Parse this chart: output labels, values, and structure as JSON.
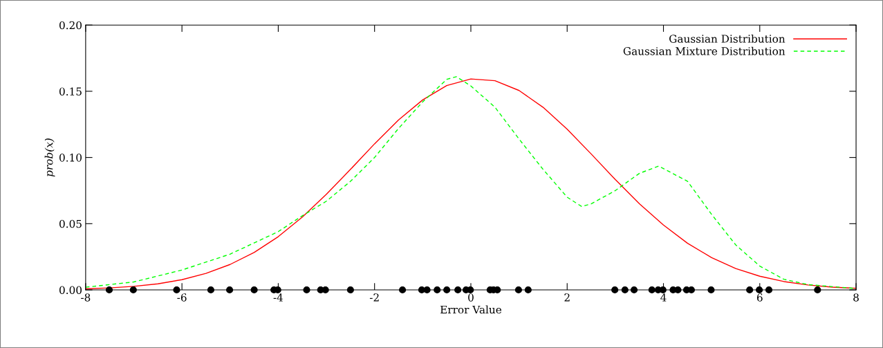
{
  "chart_data": {
    "type": "line",
    "xlabel": "Error Value",
    "ylabel": "prob(x)",
    "xlim": [
      -8,
      8
    ],
    "xticks": [
      -8,
      -6,
      -4,
      -2,
      0,
      2,
      4,
      6,
      8
    ],
    "ylim": [
      0,
      0.2
    ],
    "yticks": [
      {
        "value": 0,
        "label": "0.00"
      },
      {
        "value": 0.05,
        "label": "0.05"
      },
      {
        "value": 0.1,
        "label": "0.10"
      },
      {
        "value": 0.15,
        "label": "0.15"
      },
      {
        "value": 0.2,
        "label": "0.20"
      }
    ],
    "grid": false,
    "legend": "top right",
    "marker": "none",
    "series": [
      {
        "name": "Gaussian Distribution",
        "color": "#ff0000",
        "line_style": "solid",
        "x": [
          -8,
          -7.5,
          -7,
          -6.5,
          -6,
          -5.5,
          -5,
          -4.5,
          -4,
          -3.5,
          -3,
          -2.5,
          -2,
          -1.5,
          -1,
          -0.5,
          0,
          0.5,
          1,
          1.5,
          2,
          2.5,
          3,
          3.5,
          4,
          4.5,
          5,
          5.5,
          6,
          6.5,
          7,
          7.5,
          8
        ],
        "values": [
          0.0008,
          0.0015,
          0.0027,
          0.0046,
          0.0077,
          0.0125,
          0.0192,
          0.0283,
          0.0402,
          0.055,
          0.0722,
          0.091,
          0.1103,
          0.1284,
          0.1435,
          0.1543,
          0.1593,
          0.158,
          0.1506,
          0.1379,
          0.1214,
          0.1026,
          0.0833,
          0.0651,
          0.049,
          0.0352,
          0.0244,
          0.0161,
          0.0103,
          0.0063,
          0.0037,
          0.0021,
          0.0012
        ]
      },
      {
        "name": "Gaussian Mixture Distribution",
        "color": "#00ff00",
        "line_style": "dashed",
        "x": [
          -8,
          -7,
          -6,
          -5,
          -4,
          -3.5,
          -3,
          -2.5,
          -2,
          -1.5,
          -1,
          -0.5,
          -0.3,
          0,
          0.5,
          1,
          1.5,
          2,
          2.3,
          2.5,
          3,
          3.5,
          3.9,
          4.5,
          5,
          5.5,
          6,
          6.5,
          7,
          8
        ],
        "values": [
          0.002,
          0.006,
          0.015,
          0.027,
          0.044,
          0.056,
          0.067,
          0.082,
          0.1,
          0.122,
          0.142,
          0.159,
          0.161,
          0.154,
          0.138,
          0.114,
          0.091,
          0.07,
          0.063,
          0.065,
          0.075,
          0.088,
          0.0935,
          0.082,
          0.057,
          0.034,
          0.018,
          0.008,
          0.004,
          0.001
        ]
      },
      {
        "type": "scatter",
        "color": "#000000",
        "marker": "circle",
        "x": [
          -7.51,
          -7.01,
          -6.11,
          -5.4,
          -5.01,
          -4.5,
          -4.09,
          -4.01,
          -3.41,
          -3.12,
          -3.02,
          -2.5,
          -1.42,
          -1.02,
          -0.91,
          -0.7,
          -0.5,
          -0.27,
          -0.1,
          -0.01,
          0.4,
          0.47,
          0.55,
          0.99,
          1.19,
          2.99,
          3.2,
          3.39,
          3.76,
          3.89,
          3.99,
          4.2,
          4.3,
          4.48,
          4.58,
          4.99,
          5.79,
          5.99,
          6.19,
          7.2
        ],
        "values": [
          0,
          0,
          0,
          0,
          0,
          0,
          0,
          0,
          0,
          0,
          0,
          0,
          0,
          0,
          0,
          0,
          0,
          0,
          0,
          0,
          0,
          0,
          0,
          0,
          0,
          0,
          0,
          0,
          0,
          0,
          0,
          0,
          0,
          0,
          0,
          0,
          0,
          0,
          0,
          0
        ]
      }
    ]
  }
}
